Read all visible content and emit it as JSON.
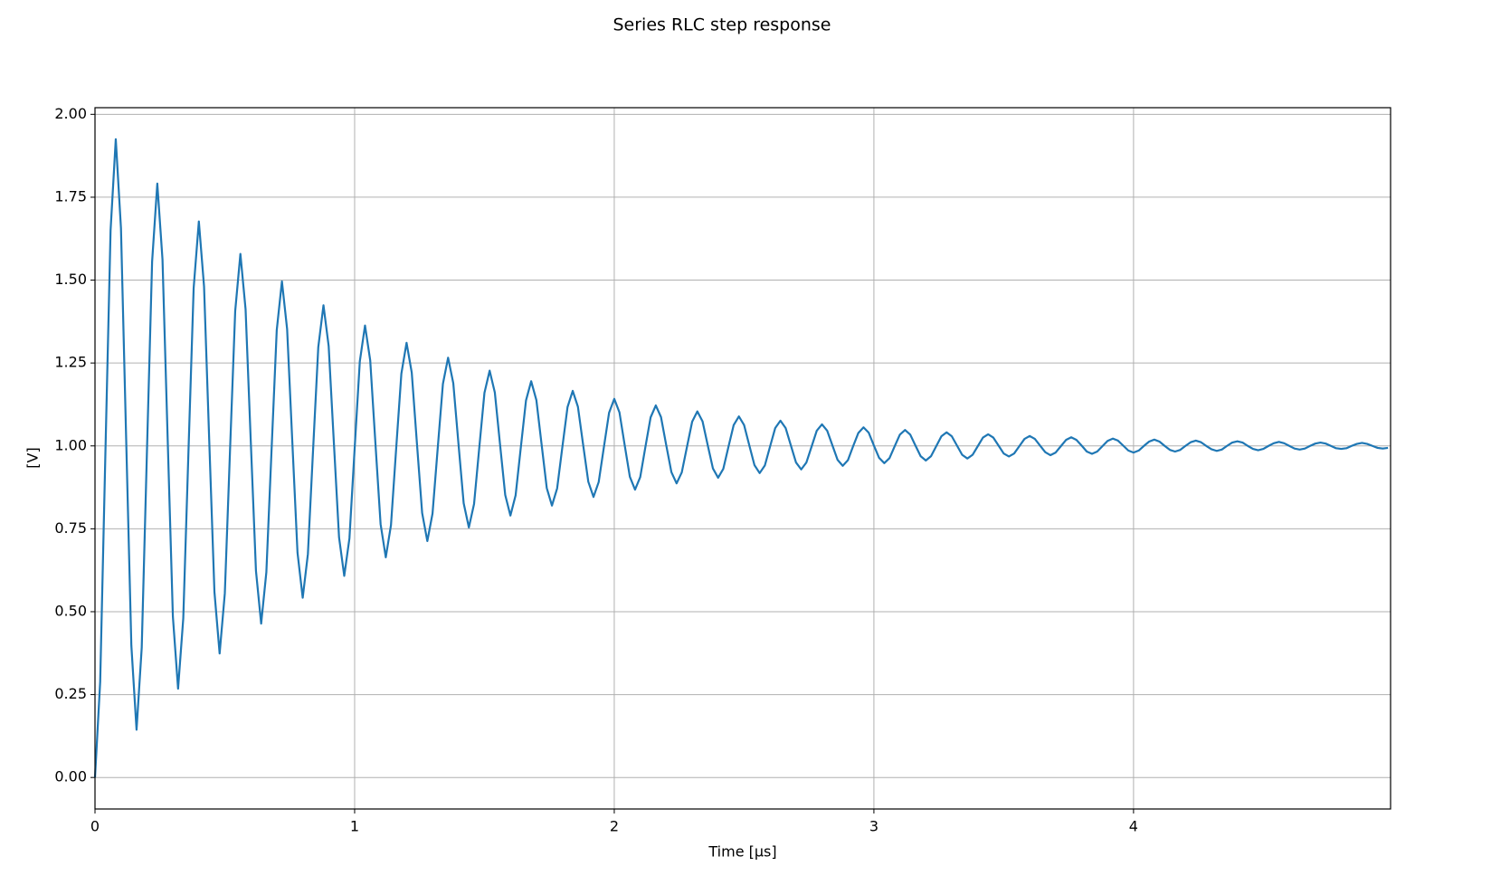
{
  "chart_data": {
    "type": "line",
    "title": "Series RLC step response",
    "xlabel": "Time [μs]",
    "ylabel": "[V]",
    "color": "#1f77b4",
    "grid": true,
    "xlim": [
      0,
      4.99
    ],
    "ylim": [
      -0.095,
      2.02
    ],
    "xticks": [
      0,
      1,
      2,
      3,
      4
    ],
    "yticks": [
      {
        "value": 0,
        "label": "0.00"
      },
      {
        "value": 0.25,
        "label": "0.25"
      },
      {
        "value": 0.5,
        "label": "0.50"
      },
      {
        "value": 0.75,
        "label": "0.75"
      },
      {
        "value": 1,
        "label": "1.00"
      },
      {
        "value": 1.25,
        "label": "1.25"
      },
      {
        "value": 1.5,
        "label": "1.50"
      },
      {
        "value": 1.75,
        "label": "1.75"
      },
      {
        "value": 2,
        "label": "2.00"
      }
    ],
    "x": [
      0,
      0.02,
      0.04,
      0.06,
      0.08,
      0.1,
      0.12,
      0.14,
      0.16,
      0.18,
      0.2,
      0.22,
      0.24,
      0.26,
      0.28,
      0.3,
      0.32,
      0.34,
      0.36,
      0.38,
      0.4,
      0.42,
      0.44,
      0.46,
      0.48,
      0.5,
      0.52,
      0.54,
      0.56,
      0.58,
      0.6,
      0.62,
      0.64,
      0.66,
      0.68,
      0.7,
      0.72,
      0.74,
      0.76,
      0.78,
      0.8,
      0.82,
      0.84,
      0.86,
      0.88,
      0.9,
      0.92,
      0.94,
      0.96,
      0.98,
      1,
      1.02,
      1.04,
      1.06,
      1.08,
      1.1,
      1.12,
      1.14,
      1.16,
      1.18,
      1.2,
      1.22,
      1.24,
      1.26,
      1.28,
      1.3,
      1.32,
      1.34,
      1.36,
      1.38,
      1.4,
      1.42,
      1.44,
      1.46,
      1.48,
      1.5,
      1.52,
      1.54,
      1.56,
      1.58,
      1.6,
      1.62,
      1.64,
      1.66,
      1.68,
      1.7,
      1.72,
      1.74,
      1.76,
      1.78,
      1.8,
      1.82,
      1.84,
      1.86,
      1.88,
      1.9,
      1.92,
      1.94,
      1.96,
      1.98,
      2,
      2.02,
      2.04,
      2.06,
      2.08,
      2.1,
      2.12,
      2.14,
      2.16,
      2.18,
      2.2,
      2.22,
      2.24,
      2.26,
      2.28,
      2.3,
      2.32,
      2.34,
      2.36,
      2.38,
      2.4,
      2.42,
      2.44,
      2.46,
      2.48,
      2.5,
      2.52,
      2.54,
      2.56,
      2.58,
      2.6,
      2.62,
      2.64,
      2.66,
      2.68,
      2.7,
      2.72,
      2.74,
      2.76,
      2.78,
      2.8,
      2.82,
      2.84,
      2.86,
      2.88,
      2.9,
      2.92,
      2.94,
      2.96,
      2.98,
      3,
      3.02,
      3.04,
      3.06,
      3.08,
      3.1,
      3.12,
      3.14,
      3.16,
      3.18,
      3.2,
      3.22,
      3.24,
      3.26,
      3.28,
      3.3,
      3.32,
      3.34,
      3.36,
      3.38,
      3.4,
      3.42,
      3.44,
      3.46,
      3.48,
      3.5,
      3.52,
      3.54,
      3.56,
      3.58,
      3.6,
      3.62,
      3.64,
      3.66,
      3.68,
      3.7,
      3.72,
      3.74,
      3.76,
      3.78,
      3.8,
      3.82,
      3.84,
      3.86,
      3.88,
      3.9,
      3.92,
      3.94,
      3.96,
      3.98,
      4,
      4.02,
      4.04,
      4.06,
      4.08,
      4.1,
      4.12,
      4.14,
      4.16,
      4.18,
      4.2,
      4.22,
      4.24,
      4.26,
      4.28,
      4.3,
      4.32,
      4.34,
      4.36,
      4.38,
      4.4,
      4.42,
      4.44,
      4.46,
      4.48,
      4.5,
      4.52,
      4.54,
      4.56,
      4.58,
      4.6,
      4.62,
      4.64,
      4.66,
      4.68,
      4.7,
      4.72,
      4.74,
      4.76,
      4.78,
      4.8,
      4.82,
      4.84,
      4.86,
      4.88,
      4.9,
      4.92,
      4.94,
      4.96,
      4.98
    ],
    "values": [
      0,
      0.289,
      0.976,
      1.65,
      1.925,
      1.657,
      1.022,
      0.398,
      0.144,
      0.392,
      0.98,
      1.556,
      1.791,
      1.562,
      1.019,
      0.485,
      0.268,
      0.48,
      0.983,
      1.476,
      1.677,
      1.481,
      1.016,
      0.56,
      0.374,
      0.555,
      0.985,
      1.407,
      1.579,
      1.412,
      1.014,
      0.623,
      0.464,
      0.619,
      0.987,
      1.349,
      1.496,
      1.352,
      1.012,
      0.678,
      0.542,
      0.674,
      0.989,
      1.298,
      1.424,
      1.301,
      1.01,
      0.724,
      0.608,
      0.721,
      0.991,
      1.255,
      1.363,
      1.258,
      1.009,
      0.764,
      0.664,
      0.761,
      0.992,
      1.218,
      1.311,
      1.221,
      1.007,
      0.798,
      0.713,
      0.796,
      0.993,
      1.187,
      1.266,
      1.189,
      1.006,
      0.827,
      0.754,
      0.825,
      0.994,
      1.16,
      1.227,
      1.161,
      1.005,
      0.852,
      0.79,
      0.851,
      0.995,
      1.137,
      1.195,
      1.138,
      1.005,
      0.873,
      0.82,
      0.872,
      0.996,
      1.117,
      1.166,
      1.118,
      1.004,
      0.892,
      0.846,
      0.891,
      0.996,
      1.1,
      1.142,
      1.101,
      1.003,
      0.907,
      0.868,
      0.906,
      0.997,
      1.086,
      1.122,
      1.087,
      1.003,
      0.921,
      0.887,
      0.92,
      0.997,
      1.073,
      1.104,
      1.074,
      1.002,
      0.932,
      0.904,
      0.931,
      0.998,
      1.063,
      1.089,
      1.063,
      1.002,
      0.942,
      0.918,
      0.941,
      0.998,
      1.054,
      1.076,
      1.054,
      1.002,
      0.95,
      0.929,
      0.95,
      0.998,
      1.046,
      1.065,
      1.046,
      1.002,
      0.958,
      0.94,
      0.957,
      0.999,
      1.039,
      1.056,
      1.04,
      1.001,
      0.964,
      0.948,
      0.963,
      0.999,
      1.034,
      1.048,
      1.034,
      1.001,
      0.969,
      0.956,
      0.969,
      0.999,
      1.029,
      1.041,
      1.029,
      1.001,
      0.973,
      0.962,
      0.973,
      0.999,
      1.025,
      1.035,
      1.025,
      1.001,
      0.977,
      0.968,
      0.977,
      0.999,
      1.021,
      1.03,
      1.021,
      1.001,
      0.981,
      0.972,
      0.98,
      0.999,
      1.018,
      1.026,
      1.018,
      1.001,
      0.983,
      0.976,
      0.983,
      0.999,
      1.015,
      1.022,
      1.016,
      1.001,
      0.986,
      0.98,
      0.986,
      1,
      1.013,
      1.019,
      1.013,
      1,
      0.988,
      0.983,
      0.988,
      1,
      1.011,
      1.016,
      1.011,
      1,
      0.99,
      0.985,
      0.989,
      1,
      1.01,
      1.014,
      1.01,
      1,
      0.991,
      0.987,
      0.991,
      1,
      1.008,
      1.012,
      1.008,
      1,
      0.992,
      0.989,
      0.992,
      1,
      1.007,
      1.01,
      1.007,
      1,
      0.993,
      0.991,
      0.993,
      1,
      1.006,
      1.009,
      1.006,
      1,
      0.994,
      0.992,
      0.994
    ]
  }
}
